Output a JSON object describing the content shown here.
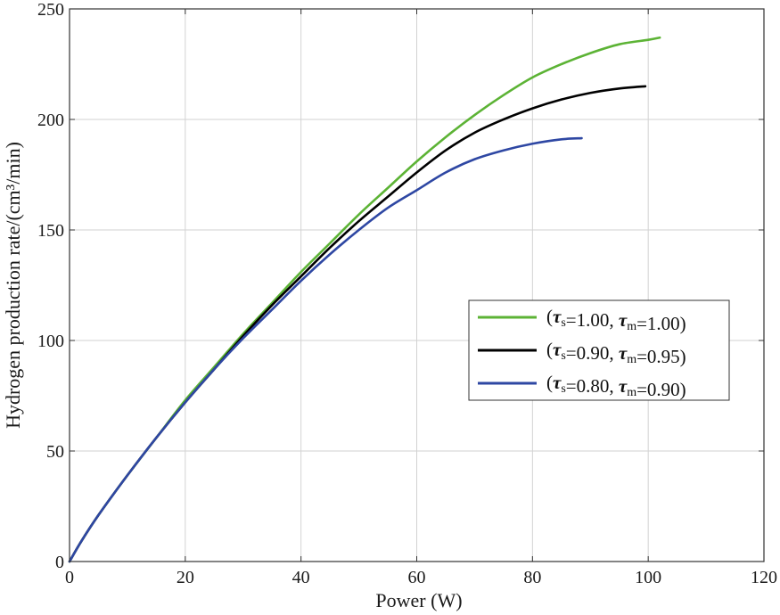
{
  "chart_data": {
    "type": "line",
    "xlabel": "Power (W)",
    "ylabel": "Hydrogen production rate/(cm³/min)",
    "xlim": [
      0,
      120
    ],
    "ylim": [
      0,
      250
    ],
    "x_ticks": [
      0,
      20,
      40,
      60,
      80,
      100,
      120
    ],
    "y_ticks": [
      0,
      50,
      100,
      150,
      200,
      250
    ],
    "x_tick_labels": [
      "0",
      "20",
      "40",
      "60",
      "80",
      "100",
      "120"
    ],
    "y_tick_labels": [
      "0",
      "50",
      "100",
      "150",
      "200",
      "250"
    ],
    "grid": true,
    "legend_position": "center-right",
    "series": [
      {
        "name": "(τs=1.00, τm=1.00)",
        "color": "#5cb335",
        "legend": {
          "s_val": "1.00",
          "m_val": "1.00"
        },
        "x": [
          0,
          2,
          5,
          10,
          15,
          20,
          25,
          30,
          35,
          40,
          45,
          50,
          55,
          60,
          65,
          70,
          75,
          80,
          85,
          90,
          95,
          100,
          102
        ],
        "y": [
          0,
          9,
          21,
          39,
          56,
          73,
          88,
          103,
          117,
          131,
          144,
          157,
          169,
          181,
          192,
          202,
          211,
          219,
          225,
          230,
          234,
          236,
          237
        ]
      },
      {
        "name": "(τs=0.90, τm=0.95)",
        "color": "#000000",
        "legend": {
          "s_val": "0.90",
          "m_val": "0.95"
        },
        "x": [
          0,
          2,
          5,
          10,
          15,
          20,
          25,
          30,
          35,
          40,
          45,
          50,
          55,
          60,
          65,
          70,
          75,
          80,
          85,
          90,
          95,
          99.5
        ],
        "y": [
          0,
          9,
          21,
          39,
          56,
          72,
          87,
          102,
          116,
          129,
          142,
          154,
          165,
          176,
          186,
          194,
          200,
          205,
          209,
          212,
          214,
          215
        ]
      },
      {
        "name": "(τs=0.80, τm=0.90)",
        "color": "#2e47a3",
        "legend": {
          "s_val": "0.80",
          "m_val": "0.90"
        },
        "x": [
          0,
          2,
          5,
          10,
          15,
          20,
          25,
          30,
          35,
          40,
          45,
          50,
          55,
          60,
          65,
          70,
          75,
          80,
          85,
          88.5
        ],
        "y": [
          0,
          9,
          21,
          39,
          56,
          72,
          87,
          101,
          114,
          127,
          139,
          150,
          160,
          168,
          176,
          182,
          186,
          189,
          191,
          191.5
        ]
      }
    ]
  }
}
